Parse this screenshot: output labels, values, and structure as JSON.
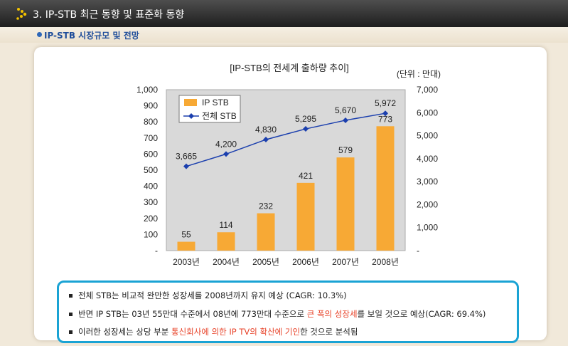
{
  "header": {
    "section_title": "3. IP-STB 최근 동향 및 표준화 동향",
    "subsection_title": "IP-STB 시장규모 및 전망"
  },
  "chart_data": {
    "type": "bar+line",
    "title": "[IP-STB의 전세계 출하량 추이]",
    "unit_label": "(단위 : 만대)",
    "categories": [
      "2003년",
      "2004년",
      "2005년",
      "2006년",
      "2007년",
      "2008년"
    ],
    "series": [
      {
        "name": "IP STB",
        "type": "bar",
        "axis": "left",
        "values": [
          55,
          114,
          232,
          421,
          579,
          773
        ],
        "color": "#f7a935"
      },
      {
        "name": "전체 STB",
        "type": "line",
        "axis": "right",
        "values": [
          3665,
          4200,
          4830,
          5295,
          5670,
          5972
        ],
        "color": "#1b3fae"
      }
    ],
    "left_axis": {
      "ylim": [
        0,
        1000
      ],
      "tick_labels": [
        "-",
        "100",
        "200",
        "300",
        "400",
        "500",
        "600",
        "700",
        "800",
        "900",
        "1,000"
      ]
    },
    "right_axis": {
      "ylim": [
        0,
        7000
      ],
      "tick_labels": [
        "-",
        "1,000",
        "2,000",
        "3,000",
        "4,000",
        "5,000",
        "6,000",
        "7,000"
      ]
    },
    "bar_labels": [
      "55",
      "114",
      "232",
      "421",
      "579",
      "773"
    ],
    "line_labels": [
      "3,665",
      "4,200",
      "4,830",
      "5,295",
      "5,670",
      "5,972"
    ],
    "legend_position": "top-left"
  },
  "notes": [
    {
      "parts": [
        {
          "text": "전체 STB는 비교적 완만한 성장세를 2008년까지 유지 예상 (CAGR: 10.3%)",
          "hl": false
        }
      ]
    },
    {
      "parts": [
        {
          "text": "반면 IP STB는 03년 55만대 수준에서 08년에 773만대 수준으로 ",
          "hl": false
        },
        {
          "text": "큰 폭의 성장세",
          "hl": true
        },
        {
          "text": "를 보일 것으로 예상(CAGR: 69.4%)",
          "hl": false
        }
      ]
    },
    {
      "parts": [
        {
          "text": "이러한 성장세는 상당 부분 ",
          "hl": false
        },
        {
          "text": "통신회사에 의한 IP TV의 확산에 기인",
          "hl": true
        },
        {
          "text": "한 것으로 분석됨",
          "hl": false
        }
      ]
    }
  ]
}
